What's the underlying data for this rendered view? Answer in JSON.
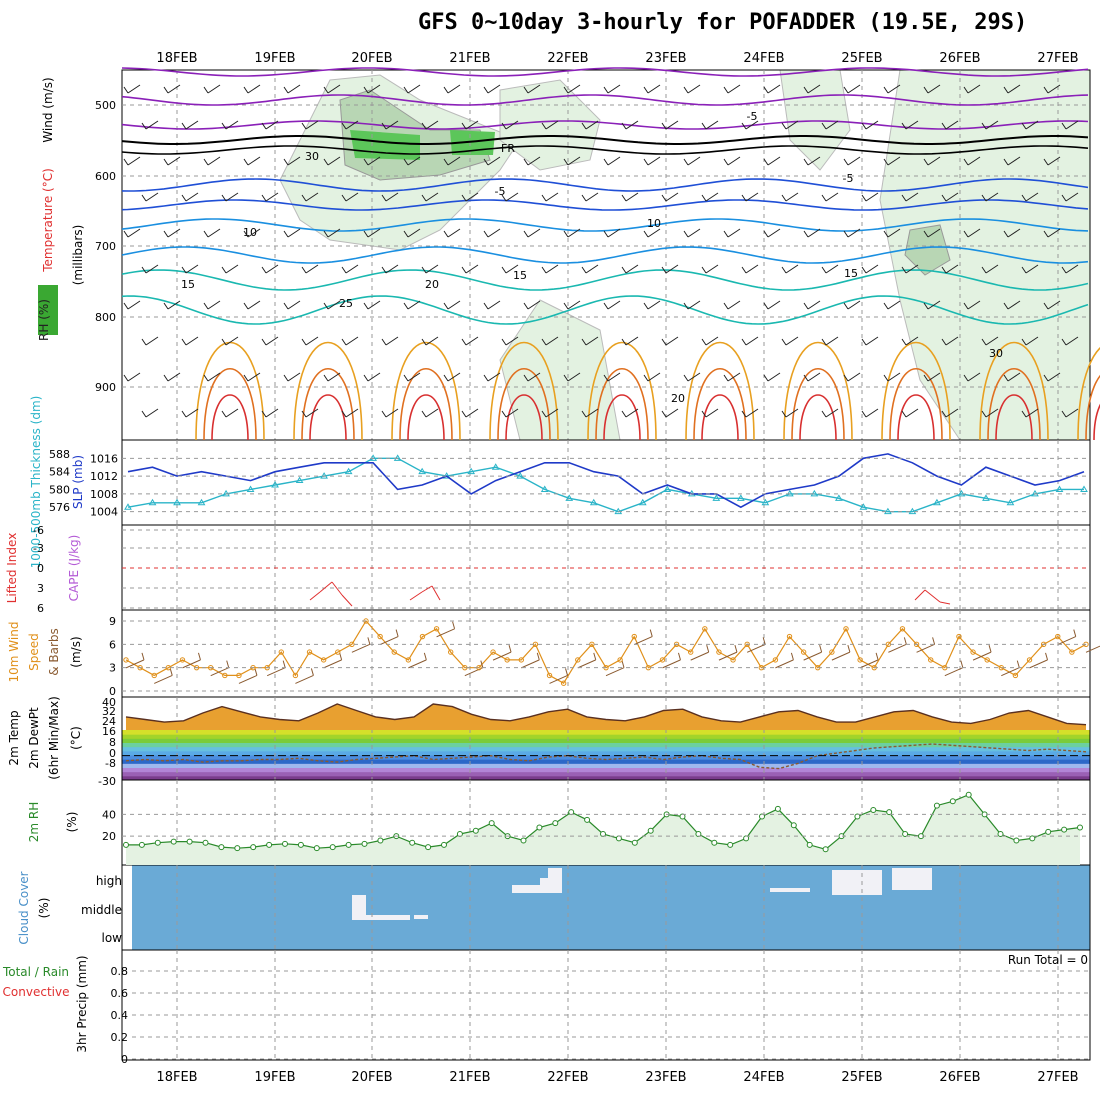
{
  "title": "GFS 0~10day 3-hourly for POFADDER (19.5E, 29S)",
  "dates": [
    "18FEB",
    "19FEB",
    "20FEB",
    "21FEB",
    "22FEB",
    "23FEB",
    "24FEB",
    "25FEB",
    "26FEB",
    "27FEB"
  ],
  "colors": {
    "rh_green": "#3aa832",
    "temp_blue": "#1f4fd6",
    "freeze": "#000000",
    "cape_purple": "#b45bd6",
    "lifted_red": "#e03030",
    "wind_orange": "#e0901a",
    "rh2m_green": "#2a8a2a",
    "cloud_blue": "#6aaad6",
    "slp_blue": "#1f3ac8",
    "thick_cyan": "#2ab4c8"
  },
  "panels": {
    "upper": {
      "ylabel_rh": "RH (%)",
      "ylabel_temp": "Temperature (°C)",
      "ylabel_wind": "Wind (m/s)",
      "ylabel_press": "(millibars)",
      "yticks": [
        "500",
        "600",
        "700",
        "800",
        "900"
      ],
      "contour_labels": [
        "-5",
        "FR",
        "-5",
        "-5",
        "10",
        "10",
        "15",
        "15",
        "20",
        "15",
        "25",
        "20",
        "30",
        "30"
      ]
    },
    "thickness": {
      "ylabel_thick": "1000-500mb Thickness (dm)",
      "ylabel_slp": "SLP (mb)",
      "yticks_thick": [
        "588",
        "584",
        "580",
        "576"
      ],
      "yticks_slp": [
        "1016",
        "1012",
        "1008",
        "1004"
      ]
    },
    "cape": {
      "ylabel_li": "Lifted Index",
      "ylabel_cape": "CAPE (J/kg)",
      "yticks": [
        "-6",
        "-3",
        "0",
        "3",
        "6"
      ]
    },
    "wind10": {
      "ylabel": "10m Wind Speed & Barbs (m/s)",
      "ylabel_a": "10m Wind",
      "ylabel_b": "Speed",
      "ylabel_c": "& Barbs",
      "ylabel_d": "(m/s)",
      "yticks": [
        "9",
        "6",
        "3",
        "0"
      ]
    },
    "temp2m": {
      "ylabel_a": "2m Temp",
      "ylabel_b": "2m DewPt",
      "ylabel_c": "(6hr Min/Max)",
      "ylabel_d": "(°C)",
      "yticks": [
        "40",
        "32",
        "24",
        "16",
        "8",
        "0",
        "-8",
        "-30"
      ]
    },
    "rh2m": {
      "ylabel_a": "2m RH",
      "ylabel_b": "(%)",
      "yticks": [
        "40",
        "20"
      ]
    },
    "cloud": {
      "ylabel_a": "Cloud Cover",
      "ylabel_b": "(%)",
      "levels": [
        "high",
        "middle",
        "low"
      ]
    },
    "precip": {
      "ylabel_a": "Total / Rain",
      "ylabel_b": "Convective",
      "ylabel_c": "3hr Precip (mm)",
      "yticks": [
        "0.8",
        "0.6",
        "0.4",
        "0.2",
        "0"
      ],
      "run_total": "Run Total = 0"
    }
  },
  "chart_data": [
    {
      "type": "line",
      "title": "1000-500mb Thickness (dm) / SLP (mb)",
      "x": [
        "17FEB12",
        "17FEB18",
        "18FEB00",
        "18FEB06",
        "18FEB12",
        "18FEB18",
        "19FEB00",
        "19FEB06",
        "19FEB12",
        "19FEB18",
        "20FEB00",
        "20FEB06",
        "20FEB12",
        "20FEB18",
        "21FEB00",
        "21FEB06",
        "21FEB12",
        "21FEB18",
        "22FEB00",
        "22FEB06",
        "22FEB12",
        "22FEB18",
        "23FEB00",
        "23FEB06",
        "23FEB12",
        "23FEB18",
        "24FEB00",
        "24FEB06",
        "24FEB12",
        "24FEB18",
        "25FEB00",
        "25FEB06",
        "25FEB12",
        "25FEB18",
        "26FEB00",
        "26FEB06",
        "26FEB12",
        "26FEB18",
        "27FEB00",
        "27FEB06"
      ],
      "series": [
        {
          "name": "Thickness",
          "values": [
            576,
            577,
            577,
            577,
            579,
            580,
            581,
            582,
            583,
            584,
            587,
            587,
            584,
            583,
            584,
            585,
            583,
            580,
            578,
            577,
            575,
            577,
            580,
            579,
            578,
            578,
            577,
            579,
            579,
            578,
            576,
            575,
            575,
            577,
            579,
            578,
            577,
            579,
            580,
            580
          ]
        },
        {
          "name": "SLP",
          "values": [
            1013,
            1014,
            1012,
            1013,
            1012,
            1011,
            1013,
            1014,
            1015,
            1015,
            1015,
            1009,
            1010,
            1012,
            1008,
            1011,
            1013,
            1015,
            1015,
            1013,
            1012,
            1008,
            1010,
            1008,
            1008,
            1005,
            1008,
            1009,
            1010,
            1012,
            1016,
            1017,
            1015,
            1012,
            1010,
            1014,
            1012,
            1010,
            1011,
            1013
          ]
        }
      ]
    },
    {
      "type": "line",
      "title": "10m Wind Speed (m/s)",
      "series": [
        {
          "name": "Speed",
          "values": [
            4,
            3,
            2,
            3,
            4,
            3,
            3,
            2,
            2,
            3,
            3,
            5,
            2,
            5,
            4,
            5,
            6,
            9,
            7,
            5,
            4,
            7,
            8,
            5,
            3,
            3,
            5,
            4,
            4,
            6,
            2,
            1,
            4,
            6,
            3,
            4,
            7,
            3,
            4,
            6,
            5,
            8,
            5,
            4,
            6,
            3,
            4,
            7,
            5,
            3,
            5,
            8,
            4,
            3,
            6,
            8,
            6,
            4,
            3,
            7,
            5,
            4,
            3,
            2,
            4,
            6,
            7,
            5,
            6
          ]
        }
      ]
    },
    {
      "type": "area",
      "title": "2m RH (%)",
      "series": [
        {
          "name": "2m RH",
          "values": [
            12,
            12,
            14,
            15,
            15,
            14,
            10,
            9,
            10,
            12,
            13,
            12,
            9,
            10,
            12,
            13,
            16,
            20,
            14,
            10,
            12,
            22,
            25,
            32,
            20,
            16,
            28,
            32,
            42,
            35,
            22,
            18,
            14,
            25,
            40,
            38,
            22,
            14,
            12,
            18,
            38,
            45,
            30,
            12,
            8,
            20,
            38,
            44,
            42,
            22,
            20,
            48,
            52,
            58,
            40,
            22,
            16,
            18,
            24,
            26,
            28
          ]
        }
      ]
    },
    {
      "type": "line",
      "title": "2m Temp (°C)",
      "series": [
        {
          "name": "2m Temp",
          "values": [
            30,
            28,
            26,
            27,
            33,
            38,
            34,
            30,
            28,
            27,
            33,
            40,
            35,
            30,
            28,
            30,
            40,
            38,
            32,
            28,
            27,
            30,
            34,
            36,
            30,
            28,
            27,
            30,
            35,
            36,
            30,
            27,
            26,
            30,
            34,
            35,
            30,
            26,
            26,
            30,
            34,
            35,
            30,
            26,
            25,
            28,
            33,
            35,
            30,
            25,
            24
          ]
        },
        {
          "name": "2m DewPt",
          "values": [
            -4,
            -3,
            -4,
            -3,
            -5,
            -4,
            -4,
            -3,
            -3,
            -2,
            -4,
            -5,
            -3,
            -2,
            -1,
            0,
            -3,
            -2,
            -1,
            0,
            -3,
            -4,
            -1,
            0,
            -2,
            -3,
            -2,
            -1,
            -3,
            -1,
            0,
            -2,
            -3,
            -9,
            -10,
            -6,
            0,
            2,
            4,
            6,
            7,
            8,
            9,
            8,
            7,
            6,
            5,
            4,
            5,
            4,
            3
          ]
        }
      ]
    },
    {
      "type": "bar",
      "title": "Cloud Cover (%)",
      "categories": [
        "high",
        "middle",
        "low"
      ],
      "values": [
        0,
        0,
        0
      ]
    },
    {
      "type": "bar",
      "title": "3hr Precip (mm)",
      "values": [
        0
      ],
      "ylim": [
        0,
        0.9
      ]
    }
  ]
}
